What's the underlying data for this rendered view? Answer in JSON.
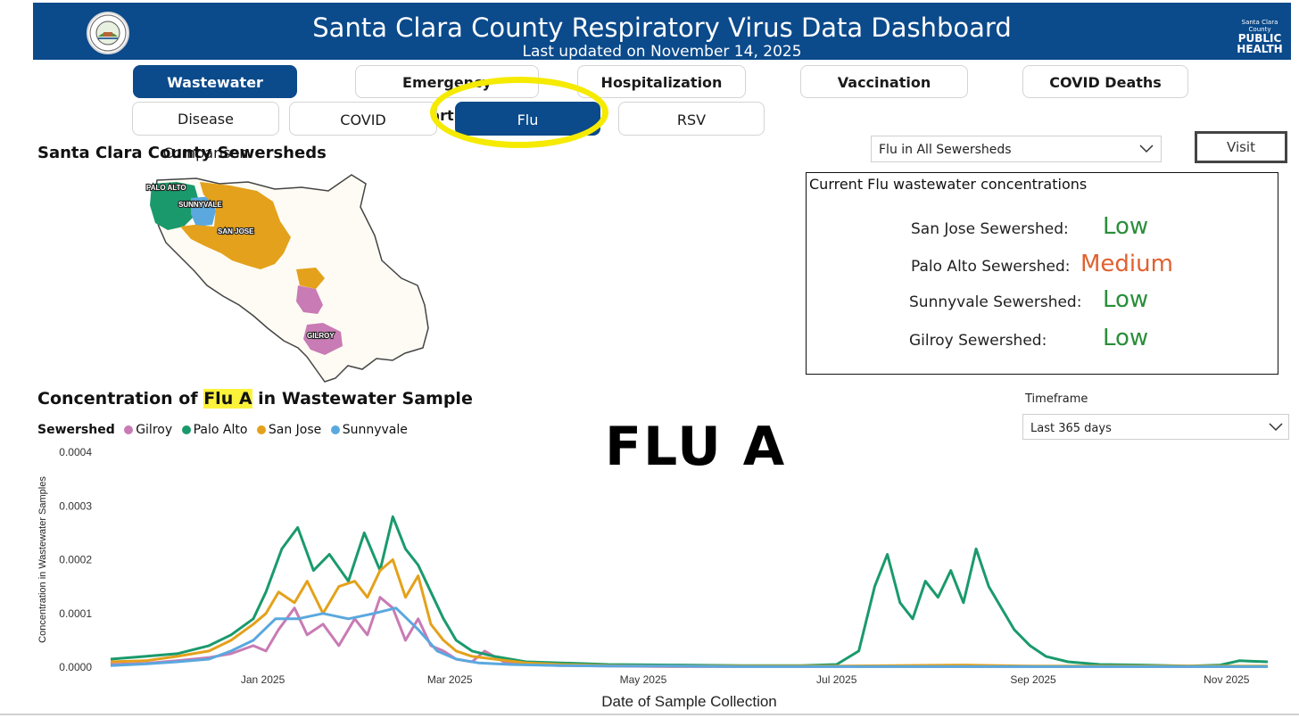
{
  "header": {
    "title": "Santa Clara County Respiratory Virus Data Dashboard",
    "subtitle": "Last updated on November 14, 2025",
    "seal_text": "THE COUNTY OF SANTA CLARA",
    "logo_small": "Santa Clara County",
    "logo_line1": "PUBLIC",
    "logo_line2": "HEALTH",
    "brand_color": "#0b4a8b"
  },
  "nav": {
    "primary_tabs": [
      {
        "label": "Wastewater",
        "active": true
      },
      {
        "label": "Emergency Department",
        "active": false
      },
      {
        "label": "Hospitalization",
        "active": false
      },
      {
        "label": "Vaccination",
        "active": false
      },
      {
        "label": "COVID Deaths",
        "active": false
      }
    ],
    "secondary_tabs": [
      {
        "label": "Disease Comparison",
        "active": false
      },
      {
        "label": "COVID",
        "active": false
      },
      {
        "label": "Flu",
        "active": true
      },
      {
        "label": "RSV",
        "active": false
      }
    ],
    "highlight_color": "#f5ea00"
  },
  "map_section": {
    "title": "Santa Clara County Sewersheds",
    "labels": [
      "PALO ALTO",
      "SUNNYVALE",
      "SAN JOSE",
      "GILROY"
    ]
  },
  "filter": {
    "sewershed_selected": "Flu in All Sewersheds",
    "visit_label": "Visit"
  },
  "concentrations": {
    "title": "Current Flu wastewater concentrations",
    "rows": [
      {
        "label": "San Jose Sewershed:",
        "level": "Low"
      },
      {
        "label": "Palo Alto Sewershed:",
        "level": "Medium"
      },
      {
        "label": "Sunnyvale Sewershed:",
        "level": "Low"
      },
      {
        "label": "Gilroy Sewershed:",
        "level": "Low"
      }
    ],
    "low_color": "#2a8e3a",
    "medium_color": "#e0612f"
  },
  "chart_section": {
    "title_prefix": "Concentration of ",
    "title_highlight": "Flu A",
    "title_suffix": " in Wastewater Sample",
    "legend_title": "Sewershed",
    "overlay_text": "FLU A",
    "timeframe_label": "Timeframe",
    "timeframe_selected": "Last 365 days"
  },
  "chart_data": {
    "type": "line",
    "xlabel": "Date of Sample Collection",
    "ylabel": "Concentration in Wastewater Samples",
    "ylim": [
      0,
      0.0004
    ],
    "y_ticks": [
      "0.0000",
      "0.0001",
      "0.0002",
      "0.0003",
      "0.0004"
    ],
    "x_ticks": [
      {
        "label": "Jan 2025",
        "date": "2025-01-01"
      },
      {
        "label": "Mar 2025",
        "date": "2025-03-01"
      },
      {
        "label": "May 2025",
        "date": "2025-05-01"
      },
      {
        "label": "Jul 2025",
        "date": "2025-07-01"
      },
      {
        "label": "Sep 2025",
        "date": "2025-09-01"
      },
      {
        "label": "Nov 2025",
        "date": "2025-11-01"
      }
    ],
    "xlim": [
      "2024-11-14",
      "2025-11-14"
    ],
    "series": [
      {
        "name": "Gilroy",
        "color": "#c87bb4",
        "x": [
          "2024-11-14",
          "2024-11-25",
          "2024-12-05",
          "2024-12-15",
          "2024-12-22",
          "2024-12-29",
          "2025-01-02",
          "2025-01-06",
          "2025-01-11",
          "2025-01-15",
          "2025-01-20",
          "2025-01-25",
          "2025-01-30",
          "2025-02-03",
          "2025-02-07",
          "2025-02-11",
          "2025-02-15",
          "2025-02-19",
          "2025-02-23",
          "2025-02-27",
          "2025-03-03",
          "2025-03-08",
          "2025-03-12",
          "2025-03-18",
          "2025-03-25",
          "2025-04-05",
          "2025-04-20",
          "2025-05-10",
          "2025-06-01",
          "2025-07-01",
          "2025-08-01",
          "2025-09-01",
          "2025-10-01",
          "2025-11-14"
        ],
        "y": [
          5e-06,
          7e-06,
          1.2e-05,
          1.8e-05,
          2.5e-05,
          4e-05,
          3e-05,
          7e-05,
          0.00011,
          6e-05,
          8e-05,
          4e-05,
          9e-05,
          6e-05,
          0.00013,
          0.00011,
          5e-05,
          9e-05,
          4e-05,
          3e-05,
          1.5e-05,
          1e-05,
          3e-05,
          1e-05,
          5e-06,
          3e-06,
          2e-06,
          1e-06,
          1e-06,
          1e-06,
          1e-06,
          1e-06,
          1e-06,
          1e-06
        ]
      },
      {
        "name": "Palo Alto",
        "color": "#1a9a6c",
        "x": [
          "2024-11-14",
          "2024-11-25",
          "2024-12-05",
          "2024-12-15",
          "2024-12-22",
          "2024-12-29",
          "2025-01-02",
          "2025-01-07",
          "2025-01-12",
          "2025-01-17",
          "2025-01-22",
          "2025-01-28",
          "2025-02-02",
          "2025-02-07",
          "2025-02-11",
          "2025-02-15",
          "2025-02-19",
          "2025-02-23",
          "2025-02-27",
          "2025-03-03",
          "2025-03-08",
          "2025-03-15",
          "2025-03-25",
          "2025-04-05",
          "2025-04-20",
          "2025-05-10",
          "2025-06-01",
          "2025-06-20",
          "2025-07-01",
          "2025-07-08",
          "2025-07-13",
          "2025-07-17",
          "2025-07-21",
          "2025-07-25",
          "2025-07-29",
          "2025-08-02",
          "2025-08-06",
          "2025-08-10",
          "2025-08-14",
          "2025-08-18",
          "2025-08-22",
          "2025-08-26",
          "2025-08-31",
          "2025-09-05",
          "2025-09-12",
          "2025-09-22",
          "2025-10-05",
          "2025-10-20",
          "2025-10-30",
          "2025-11-05",
          "2025-11-14"
        ],
        "y": [
          1.5e-05,
          2e-05,
          2.5e-05,
          4e-05,
          6e-05,
          9e-05,
          0.00014,
          0.00022,
          0.00026,
          0.00018,
          0.00021,
          0.00016,
          0.00025,
          0.00018,
          0.00028,
          0.00022,
          0.00019,
          0.00014,
          9e-05,
          5e-05,
          3e-05,
          2e-05,
          1e-05,
          8e-06,
          5e-06,
          4e-06,
          3e-06,
          3e-06,
          5e-06,
          3e-05,
          0.00015,
          0.00021,
          0.00012,
          9e-05,
          0.00016,
          0.00013,
          0.00018,
          0.00012,
          0.00022,
          0.00015,
          0.00011,
          7e-05,
          4e-05,
          2e-05,
          1e-05,
          5e-06,
          4e-06,
          2e-06,
          4e-06,
          1.2e-05,
          1e-05
        ]
      },
      {
        "name": "San Jose",
        "color": "#e4a11b",
        "x": [
          "2024-11-14",
          "2024-11-25",
          "2024-12-05",
          "2024-12-15",
          "2024-12-22",
          "2024-12-29",
          "2025-01-02",
          "2025-01-06",
          "2025-01-11",
          "2025-01-15",
          "2025-01-20",
          "2025-01-25",
          "2025-01-30",
          "2025-02-03",
          "2025-02-07",
          "2025-02-11",
          "2025-02-15",
          "2025-02-19",
          "2025-02-23",
          "2025-02-27",
          "2025-03-03",
          "2025-03-08",
          "2025-03-15",
          "2025-03-25",
          "2025-04-05",
          "2025-04-20",
          "2025-05-10",
          "2025-06-01",
          "2025-07-01",
          "2025-07-20",
          "2025-08-10",
          "2025-09-01",
          "2025-10-01",
          "2025-11-14"
        ],
        "y": [
          1e-05,
          1.2e-05,
          2e-05,
          3e-05,
          5e-05,
          8e-05,
          0.0001,
          0.00014,
          0.00012,
          0.00016,
          0.0001,
          0.00015,
          0.00016,
          0.00013,
          0.00018,
          0.0002,
          0.00013,
          0.00017,
          8e-05,
          5e-05,
          3e-05,
          2e-05,
          1.5e-05,
          8e-06,
          5e-06,
          3e-06,
          2e-06,
          2e-06,
          2e-06,
          3e-06,
          4e-06,
          2e-06,
          2e-06,
          2e-06
        ]
      },
      {
        "name": "Sunnyvale",
        "color": "#5aa8de",
        "x": [
          "2024-11-14",
          "2024-11-25",
          "2024-12-05",
          "2024-12-15",
          "2024-12-22",
          "2024-12-29",
          "2025-01-05",
          "2025-01-12",
          "2025-01-20",
          "2025-01-28",
          "2025-02-05",
          "2025-02-12",
          "2025-02-19",
          "2025-02-25",
          "2025-03-03",
          "2025-03-10",
          "2025-03-20",
          "2025-04-05",
          "2025-04-20",
          "2025-05-10",
          "2025-06-01",
          "2025-07-01",
          "2025-08-01",
          "2025-09-01",
          "2025-10-01",
          "2025-11-14"
        ],
        "y": [
          3e-06,
          6e-06,
          1e-05,
          1.5e-05,
          3e-05,
          5e-05,
          9e-05,
          9e-05,
          0.0001,
          9e-05,
          0.0001,
          0.00011,
          7e-05,
          3e-05,
          1.5e-05,
          8e-06,
          5e-06,
          3e-06,
          2e-06,
          2e-06,
          1e-06,
          1e-06,
          1e-06,
          1e-06,
          1e-06,
          1e-06
        ]
      }
    ]
  }
}
